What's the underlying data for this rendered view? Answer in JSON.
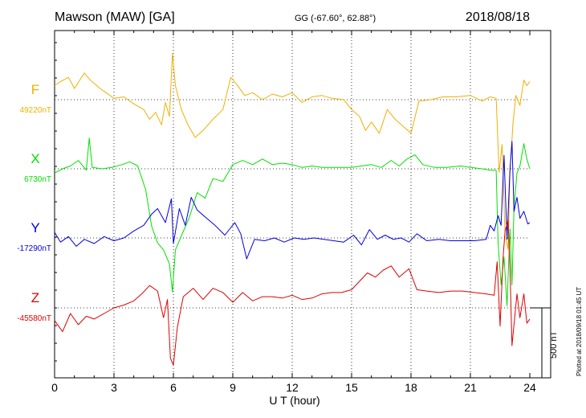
{
  "header": {
    "station": "Mawson (MAW)  [GA]",
    "coords": "GG (-67.60°,  62.88°)",
    "date": "2018/08/18"
  },
  "footer": {
    "plotted": "Plotted at 2018/09/18 01:45 UT"
  },
  "chart_data": {
    "type": "line",
    "xlabel": "U T (hour)",
    "xlim": [
      0,
      24
    ],
    "xticks": [
      0,
      3,
      6,
      9,
      12,
      15,
      18,
      21,
      24
    ],
    "x_tick_labels": [
      "0",
      "3",
      "6",
      "9",
      "12",
      "15",
      "18",
      "21",
      "24"
    ],
    "grid": true,
    "scale_bar_label": "500 nT",
    "scale_bar_nT": 500,
    "series": [
      {
        "name": "F",
        "baseline_label": "49220nT",
        "color": "#f0b000",
        "points": [
          [
            0,
            49320
          ],
          [
            0.3,
            49350
          ],
          [
            0.7,
            49380
          ],
          [
            1.0,
            49300
          ],
          [
            1.5,
            49410
          ],
          [
            1.8,
            49360
          ],
          [
            2.3,
            49300
          ],
          [
            3.0,
            49230
          ],
          [
            3.5,
            49240
          ],
          [
            4.0,
            49190
          ],
          [
            4.5,
            49150
          ],
          [
            4.8,
            49080
          ],
          [
            5.1,
            49130
          ],
          [
            5.4,
            49040
          ],
          [
            5.6,
            49200
          ],
          [
            5.8,
            49100
          ],
          [
            5.95,
            49550
          ],
          [
            6.1,
            49320
          ],
          [
            6.4,
            49150
          ],
          [
            6.7,
            49050
          ],
          [
            7.1,
            48950
          ],
          [
            7.5,
            49000
          ],
          [
            8.0,
            49080
          ],
          [
            8.5,
            49150
          ],
          [
            8.9,
            49380
          ],
          [
            9.2,
            49330
          ],
          [
            9.6,
            49250
          ],
          [
            10.0,
            49270
          ],
          [
            10.5,
            49220
          ],
          [
            11.0,
            49260
          ],
          [
            11.5,
            49240
          ],
          [
            12.0,
            49270
          ],
          [
            12.5,
            49200
          ],
          [
            13.0,
            49240
          ],
          [
            13.5,
            49250
          ],
          [
            14.0,
            49230
          ],
          [
            14.6,
            49220
          ],
          [
            15.0,
            49150
          ],
          [
            15.4,
            49100
          ],
          [
            15.7,
            49000
          ],
          [
            16.0,
            49060
          ],
          [
            16.4,
            48980
          ],
          [
            16.8,
            49150
          ],
          [
            17.2,
            49080
          ],
          [
            17.6,
            49030
          ],
          [
            18.0,
            48980
          ],
          [
            18.4,
            49210
          ],
          [
            19.0,
            49220
          ],
          [
            19.6,
            49240
          ],
          [
            20.3,
            49240
          ],
          [
            21.0,
            49250
          ],
          [
            21.6,
            49210
          ],
          [
            22.0,
            49240
          ],
          [
            22.3,
            49230
          ],
          [
            22.45,
            48700
          ],
          [
            22.6,
            48900
          ],
          [
            22.75,
            48250
          ],
          [
            22.9,
            48150
          ],
          [
            23.0,
            48700
          ],
          [
            23.15,
            49050
          ],
          [
            23.3,
            49250
          ],
          [
            23.5,
            49180
          ],
          [
            23.7,
            49360
          ],
          [
            23.85,
            49320
          ],
          [
            24.0,
            49350
          ]
        ]
      },
      {
        "name": "X",
        "baseline_label": "6730nT",
        "color": "#00e000",
        "points": [
          [
            0,
            6700
          ],
          [
            0.4,
            6730
          ],
          [
            0.8,
            6750
          ],
          [
            1.2,
            6790
          ],
          [
            1.6,
            6720
          ],
          [
            1.75,
            6950
          ],
          [
            1.9,
            6740
          ],
          [
            2.4,
            6730
          ],
          [
            2.9,
            6740
          ],
          [
            3.4,
            6760
          ],
          [
            3.8,
            6780
          ],
          [
            4.2,
            6750
          ],
          [
            4.6,
            6580
          ],
          [
            4.9,
            6320
          ],
          [
            5.2,
            6200
          ],
          [
            5.5,
            6150
          ],
          [
            5.8,
            6050
          ],
          [
            5.95,
            5850
          ],
          [
            6.1,
            6150
          ],
          [
            6.4,
            6250
          ],
          [
            6.8,
            6380
          ],
          [
            7.2,
            6560
          ],
          [
            7.6,
            6520
          ],
          [
            8.0,
            6660
          ],
          [
            8.5,
            6640
          ],
          [
            9.0,
            6760
          ],
          [
            9.5,
            6790
          ],
          [
            10.0,
            6760
          ],
          [
            10.5,
            6800
          ],
          [
            11.0,
            6760
          ],
          [
            11.5,
            6770
          ],
          [
            12.0,
            6760
          ],
          [
            12.5,
            6740
          ],
          [
            13.0,
            6750
          ],
          [
            13.5,
            6740
          ],
          [
            14.0,
            6740
          ],
          [
            14.5,
            6740
          ],
          [
            15.0,
            6740
          ],
          [
            15.5,
            6750
          ],
          [
            16.0,
            6760
          ],
          [
            16.5,
            6740
          ],
          [
            17.0,
            6790
          ],
          [
            17.4,
            6750
          ],
          [
            17.8,
            6800
          ],
          [
            18.2,
            6830
          ],
          [
            18.6,
            6760
          ],
          [
            19.2,
            6740
          ],
          [
            19.8,
            6740
          ],
          [
            20.5,
            6750
          ],
          [
            21.0,
            6740
          ],
          [
            21.6,
            6730
          ],
          [
            22.0,
            6720
          ],
          [
            22.3,
            6720
          ],
          [
            22.4,
            6200
          ],
          [
            22.55,
            5900
          ],
          [
            22.7,
            6100
          ],
          [
            22.85,
            5750
          ],
          [
            23.0,
            6300
          ],
          [
            23.1,
            5900
          ],
          [
            23.2,
            6450
          ],
          [
            23.35,
            6700
          ],
          [
            23.5,
            6750
          ],
          [
            23.7,
            6910
          ],
          [
            23.85,
            6800
          ],
          [
            24.0,
            6730
          ]
        ]
      },
      {
        "name": "Y",
        "baseline_label": "-17290nT",
        "color": "#0000e0",
        "points": [
          [
            0,
            -17250
          ],
          [
            0.3,
            -17320
          ],
          [
            0.7,
            -17280
          ],
          [
            1.1,
            -17350
          ],
          [
            1.5,
            -17300
          ],
          [
            2.0,
            -17330
          ],
          [
            2.5,
            -17280
          ],
          [
            3.0,
            -17310
          ],
          [
            3.5,
            -17290
          ],
          [
            4.0,
            -17240
          ],
          [
            4.5,
            -17200
          ],
          [
            4.9,
            -17120
          ],
          [
            5.2,
            -17080
          ],
          [
            5.6,
            -17180
          ],
          [
            5.9,
            -17010
          ],
          [
            6.0,
            -17330
          ],
          [
            6.3,
            -17080
          ],
          [
            6.6,
            -17200
          ],
          [
            6.9,
            -17000
          ],
          [
            7.2,
            -17090
          ],
          [
            7.6,
            -17140
          ],
          [
            8.1,
            -17200
          ],
          [
            8.6,
            -17270
          ],
          [
            9.1,
            -17180
          ],
          [
            9.4,
            -17260
          ],
          [
            9.7,
            -17440
          ],
          [
            10.1,
            -17300
          ],
          [
            10.6,
            -17310
          ],
          [
            11.1,
            -17290
          ],
          [
            11.6,
            -17320
          ],
          [
            12.1,
            -17290
          ],
          [
            12.6,
            -17300
          ],
          [
            13.1,
            -17290
          ],
          [
            13.6,
            -17300
          ],
          [
            14.1,
            -17310
          ],
          [
            14.6,
            -17320
          ],
          [
            15.1,
            -17270
          ],
          [
            15.5,
            -17340
          ],
          [
            15.9,
            -17230
          ],
          [
            16.3,
            -17300
          ],
          [
            16.7,
            -17270
          ],
          [
            17.1,
            -17300
          ],
          [
            17.5,
            -17290
          ],
          [
            17.9,
            -17320
          ],
          [
            18.3,
            -17260
          ],
          [
            18.8,
            -17310
          ],
          [
            19.4,
            -17300
          ],
          [
            20.0,
            -17310
          ],
          [
            20.6,
            -17310
          ],
          [
            21.2,
            -17310
          ],
          [
            21.8,
            -17300
          ],
          [
            22.0,
            -17200
          ],
          [
            22.2,
            -17240
          ],
          [
            22.4,
            -17130
          ],
          [
            22.55,
            -17200
          ],
          [
            22.7,
            -16700
          ],
          [
            22.85,
            -17300
          ],
          [
            23.0,
            -16800
          ],
          [
            23.1,
            -16600
          ],
          [
            23.2,
            -17100
          ],
          [
            23.35,
            -17000
          ],
          [
            23.5,
            -17150
          ],
          [
            23.7,
            -17100
          ],
          [
            23.9,
            -17190
          ],
          [
            24.0,
            -17180
          ]
        ]
      },
      {
        "name": "Z",
        "baseline_label": "-45580nT",
        "color": "#e00000",
        "points": [
          [
            0,
            -45670
          ],
          [
            0.4,
            -45750
          ],
          [
            0.8,
            -45620
          ],
          [
            1.2,
            -45700
          ],
          [
            1.6,
            -45640
          ],
          [
            2.0,
            -45660
          ],
          [
            2.5,
            -45620
          ],
          [
            3.0,
            -45580
          ],
          [
            3.5,
            -45560
          ],
          [
            4.0,
            -45530
          ],
          [
            4.4,
            -45480
          ],
          [
            4.8,
            -45420
          ],
          [
            5.2,
            -45460
          ],
          [
            5.5,
            -45650
          ],
          [
            5.7,
            -45520
          ],
          [
            5.85,
            -45940
          ],
          [
            6.0,
            -45990
          ],
          [
            6.2,
            -45720
          ],
          [
            6.5,
            -45500
          ],
          [
            7.0,
            -45440
          ],
          [
            7.5,
            -45520
          ],
          [
            8.0,
            -45440
          ],
          [
            8.5,
            -45470
          ],
          [
            9.0,
            -45540
          ],
          [
            9.5,
            -45470
          ],
          [
            10.0,
            -45530
          ],
          [
            10.5,
            -45500
          ],
          [
            11.0,
            -45500
          ],
          [
            11.5,
            -45510
          ],
          [
            12.0,
            -45490
          ],
          [
            12.5,
            -45520
          ],
          [
            13.0,
            -45510
          ],
          [
            13.5,
            -45480
          ],
          [
            14.0,
            -45470
          ],
          [
            14.5,
            -45470
          ],
          [
            15.0,
            -45450
          ],
          [
            15.4,
            -45390
          ],
          [
            15.8,
            -45330
          ],
          [
            16.2,
            -45360
          ],
          [
            16.6,
            -45310
          ],
          [
            17.0,
            -45280
          ],
          [
            17.4,
            -45360
          ],
          [
            17.9,
            -45300
          ],
          [
            18.3,
            -45450
          ],
          [
            18.8,
            -45460
          ],
          [
            19.4,
            -45470
          ],
          [
            20.0,
            -45460
          ],
          [
            20.6,
            -45460
          ],
          [
            21.2,
            -45470
          ],
          [
            21.8,
            -45480
          ],
          [
            22.2,
            -45490
          ],
          [
            22.35,
            -45250
          ],
          [
            22.5,
            -45710
          ],
          [
            22.65,
            -45220
          ],
          [
            22.75,
            -45030
          ],
          [
            22.9,
            -44950
          ],
          [
            23.0,
            -45300
          ],
          [
            23.1,
            -45850
          ],
          [
            23.2,
            -45700
          ],
          [
            23.35,
            -45480
          ],
          [
            23.5,
            -45650
          ],
          [
            23.7,
            -45480
          ],
          [
            23.85,
            -45690
          ],
          [
            24.0,
            -45660
          ]
        ]
      }
    ]
  }
}
